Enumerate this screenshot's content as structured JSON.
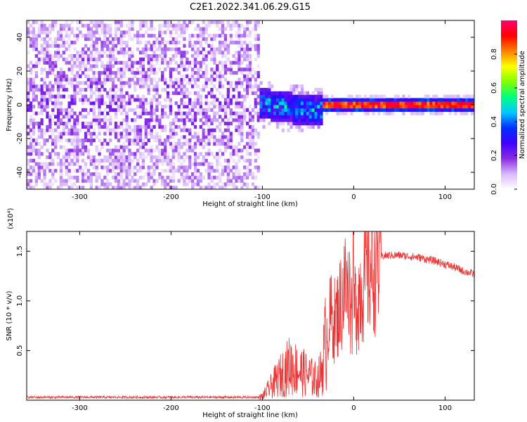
{
  "title": "C2E1.2022.341.06.29.G15",
  "chart_data": [
    {
      "type": "heatmap",
      "xlabel": "Height of straight line (km)",
      "ylabel": "Frequency (Hz)",
      "xlim": [
        -358,
        132
      ],
      "ylim": [
        -50,
        50
      ],
      "xticks": [
        -300,
        -200,
        -100,
        0,
        100
      ],
      "yticks": [
        -40,
        -20,
        0,
        20,
        40
      ],
      "colorbar": {
        "label": "Normalized spectral amplitude",
        "range": [
          0,
          1
        ],
        "ticks": [
          0.0,
          0.2,
          0.4,
          0.6,
          0.8
        ],
        "colormap": [
          "#ffffff",
          "#d8b8ff",
          "#8a2be2",
          "#3f00ff",
          "#0030ff",
          "#00c8ff",
          "#00ff80",
          "#80ff00",
          "#ffff00",
          "#ff8000",
          "#ff0000",
          "#ff0070"
        ]
      },
      "regions": [
        {
          "x_range": [
            -358,
            -103
          ],
          "freq_range": [
            -50,
            50
          ],
          "amplitude": "0.05-0.25 scattered"
        },
        {
          "x_range": [
            -130,
            -35
          ],
          "freq_center": 0,
          "freq_halfwidth": 8,
          "amplitude": "0.3-0.6"
        },
        {
          "x_range": [
            -35,
            132
          ],
          "freq_center": 0,
          "freq_halfwidth": 1.5,
          "amplitude": "0.8-1.0"
        }
      ]
    },
    {
      "type": "line",
      "xlabel": "Height of straight line (km)",
      "ylabel": "SNR (10 * v/v)",
      "y_multiplier": "(x10⁴)",
      "xlim": [
        -358,
        132
      ],
      "ylim": [
        0,
        1.7
      ],
      "xticks": [
        -300,
        -200,
        -100,
        0,
        100
      ],
      "yticks": [
        0.5,
        1.0,
        1.5
      ],
      "ytick_labels": [
        "0.5",
        "1.0",
        "1.5"
      ],
      "color": "#ee3333",
      "series": [
        {
          "x": [
            -358,
            -250,
            -150,
            -103,
            -100,
            -80,
            -70,
            -60,
            -50,
            -40,
            -35,
            -30,
            -25,
            -20,
            -15,
            -10,
            -5,
            0,
            5,
            10,
            15,
            20,
            25,
            30,
            40,
            50,
            60,
            70,
            80,
            90,
            100,
            110,
            120,
            132
          ],
          "y": [
            0.03,
            0.03,
            0.03,
            0.03,
            0.04,
            0.25,
            0.35,
            0.3,
            0.25,
            0.2,
            0.3,
            0.65,
            0.85,
            0.8,
            0.95,
            1.15,
            1.05,
            0.9,
            1.05,
            1.2,
            1.3,
            1.38,
            1.42,
            1.45,
            1.46,
            1.46,
            1.45,
            1.44,
            1.42,
            1.4,
            1.37,
            1.34,
            1.3,
            1.27
          ]
        }
      ]
    }
  ]
}
